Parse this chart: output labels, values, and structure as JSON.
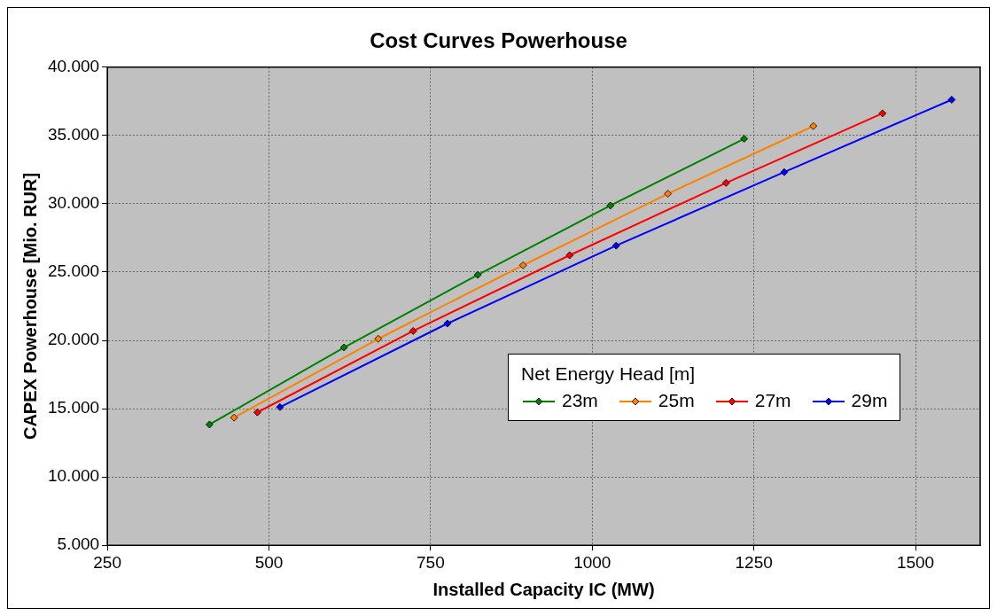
{
  "chart_data": {
    "type": "line",
    "title": "Cost Curves Powerhouse",
    "xlabel": "Installed Capacity IC (MW)",
    "ylabel": "CAPEX Powerhouse [Mio. RUR]",
    "legend_title": "Net Energy Head [m]",
    "legend": "bottom right",
    "grid": true,
    "marker": "diamond",
    "line_style": "solid",
    "xlim": [
      250,
      1600
    ],
    "xticks": [
      250,
      500,
      750,
      1000,
      1250,
      1500
    ],
    "ylim": [
      5000,
      40000
    ],
    "yticks": [
      {
        "value": 5000,
        "label": "5.000"
      },
      {
        "value": 10000,
        "label": "10.000"
      },
      {
        "value": 15000,
        "label": "15.000"
      },
      {
        "value": 20000,
        "label": "20.000"
      },
      {
        "value": 25000,
        "label": "25.000"
      },
      {
        "value": 30000,
        "label": "30.000"
      },
      {
        "value": 35000,
        "label": "35.000"
      },
      {
        "value": 40000,
        "label": "40.000"
      }
    ],
    "series": [
      {
        "name": "23m",
        "color": "#008000",
        "x": [
          408,
          616,
          823,
          1028,
          1235
        ],
        "values": [
          13840,
          19480,
          24800,
          29870,
          34760
        ]
      },
      {
        "name": "25m",
        "color": "#ff8000",
        "x": [
          446,
          669,
          893,
          1117,
          1342
        ],
        "values": [
          14345,
          20115,
          25500,
          30735,
          35690
        ]
      },
      {
        "name": "27m",
        "color": "#ff0000",
        "x": [
          482,
          723,
          965,
          1207,
          1449
        ],
        "values": [
          14730,
          20690,
          26230,
          31530,
          36620
        ]
      },
      {
        "name": "29m",
        "color": "#0000ff",
        "x": [
          517,
          776,
          1037,
          1297,
          1556
        ],
        "values": [
          15115,
          21235,
          26935,
          32320,
          37620
        ]
      }
    ]
  }
}
